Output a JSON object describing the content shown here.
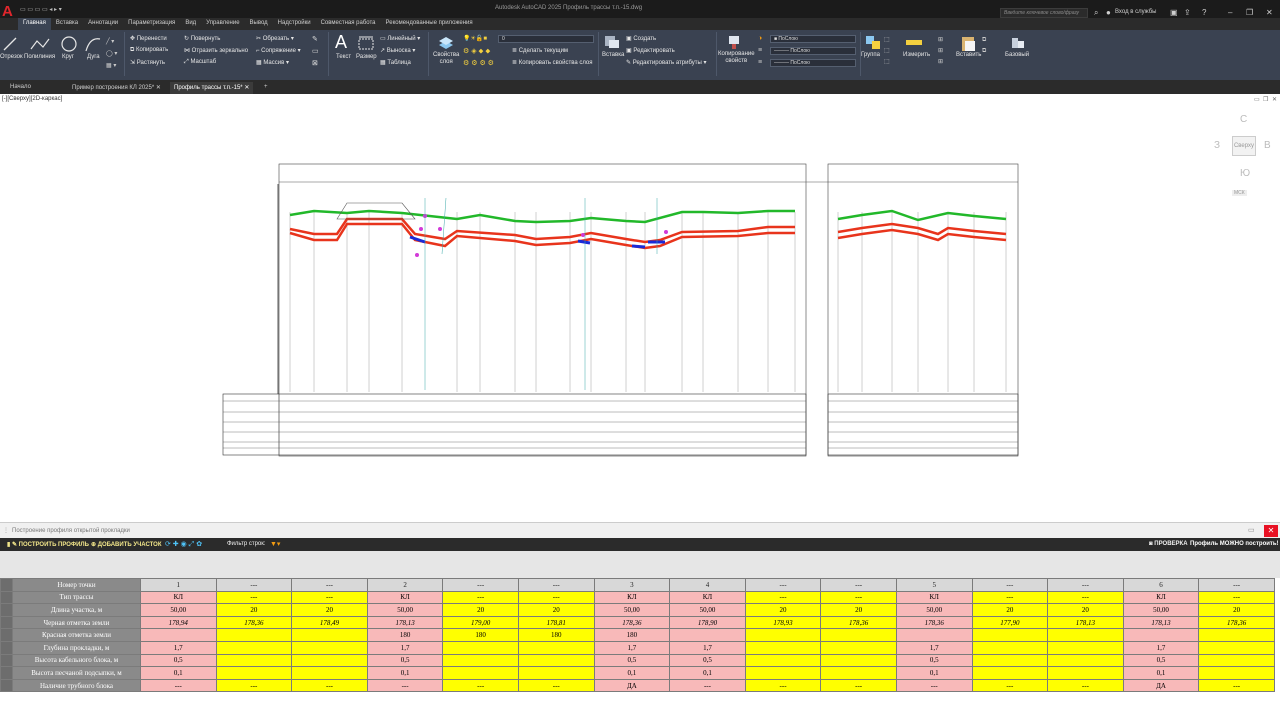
{
  "titlebar": {
    "logo": "A",
    "app_title": "Autodesk AutoCAD 2025   Профиль трассы т.п.-15.dwg",
    "search_placeholder": "Введите ключевое слово/фразу",
    "signin": "Вход в службы"
  },
  "ribbon_tabs": [
    "Главная",
    "Вставка",
    "Аннотации",
    "Параметризация",
    "Вид",
    "Управление",
    "Вывод",
    "Надстройки",
    "Совместная работа",
    "Рекомендованные приложения"
  ],
  "ribbon": {
    "draw": [
      "Отрезок",
      "Полилиния",
      "Круг",
      "Дуга"
    ],
    "modify": [
      "Перенести",
      "Повернуть",
      "Обрезать",
      "Копировать",
      "Отразить зеркально",
      "Сопряжение",
      "Растянуть",
      "Масштаб",
      "Массив"
    ],
    "annotation": [
      "Текст",
      "Размер",
      "Линейный",
      "Выноска",
      "Таблица"
    ],
    "layers": {
      "props": "Свойства слоя",
      "current_layer": "0",
      "make_current": "Сделать текущим",
      "copy_props": "Копировать свойства слоя"
    },
    "block": {
      "insert": "Вставка",
      "create": "Создать",
      "edit": "Редактировать",
      "edit_attr": "Редактировать атрибуты"
    },
    "properties": {
      "copy": "Копирование свойств",
      "bylayer1": "ПоСлою",
      "bylayer2": "ПоСлою",
      "bylayer3": "ПоСлою"
    },
    "group": "Группа",
    "utilities": "Измерить",
    "clipboard": "Вставить",
    "view": "Базовый"
  },
  "doc_tabs": [
    {
      "label": "Начало"
    },
    {
      "label": "Пример построения КЛ 2025*"
    },
    {
      "label": "Профиль трассы т.п.-15*"
    }
  ],
  "viewport": {
    "label": "[-][Сверху][2D-каркас]",
    "viewcube": {
      "n": "С",
      "s": "Ю",
      "w": "З",
      "e": "В",
      "top": "Сверху",
      "ucs": "МСК"
    }
  },
  "panel": {
    "title": "Построение профиля открытой прокладки",
    "build_btn": "ПОСТРОИТЬ ПРОФИЛЬ",
    "add_btn": "ДОБАВИТЬ УЧАСТОК",
    "filter_label": "Фильтр строк:",
    "check_btn": "ПРОВЕРКА",
    "status": "Профиль МОЖНО построить!"
  },
  "table": {
    "columns": [
      "1",
      "---",
      "---",
      "2",
      "---",
      "---",
      "3",
      "4",
      "---",
      "---",
      "5",
      "---",
      "---",
      "6",
      "---"
    ],
    "col_kinds": [
      "p",
      "y",
      "y",
      "p",
      "y",
      "y",
      "p",
      "p",
      "y",
      "y",
      "p",
      "y",
      "y",
      "p",
      "y"
    ],
    "row_labels": [
      "Номер точки",
      "Тип трассы",
      "Длина участка, м",
      "Черная отметка земли",
      "Красная отметка земли",
      "Глубина прокладки, м",
      "Высота кабельного блока, м",
      "Высота песчаной подсыпки, м",
      "Наличие трубного блока"
    ],
    "rows": [
      [
        "КЛ",
        "---",
        "---",
        "КЛ",
        "---",
        "---",
        "КЛ",
        "КЛ",
        "---",
        "---",
        "КЛ",
        "---",
        "---",
        "КЛ",
        "---"
      ],
      [
        "50,00",
        "20",
        "20",
        "50,00",
        "20",
        "20",
        "50,00",
        "50,00",
        "20",
        "20",
        "50,00",
        "20",
        "20",
        "50,00",
        "20"
      ],
      [
        "178,94",
        "178,36",
        "178,49",
        "178,13",
        "179,00",
        "178,81",
        "178,36",
        "178,90",
        "178,93",
        "178,36",
        "178,36",
        "177,90",
        "178,13",
        "178,13",
        "178,36"
      ],
      [
        "",
        "",
        "",
        "180",
        "180",
        "180",
        "180",
        "",
        "",
        "",
        "",
        "",
        "",
        "",
        ""
      ],
      [
        "1,7",
        "",
        "",
        "1,7",
        "",
        "",
        "1,7",
        "1,7",
        "",
        "",
        "1,7",
        "",
        "",
        "1,7",
        ""
      ],
      [
        "0,5",
        "",
        "",
        "0,5",
        "",
        "",
        "0,5",
        "0,5",
        "",
        "",
        "0,5",
        "",
        "",
        "0,5",
        ""
      ],
      [
        "0,1",
        "",
        "",
        "0,1",
        "",
        "",
        "0,1",
        "0,1",
        "",
        "",
        "0,1",
        "",
        "",
        "0,1",
        ""
      ],
      [
        "---",
        "---",
        "---",
        "---",
        "---",
        "---",
        "ДА",
        "---",
        "---",
        "---",
        "---",
        "---",
        "---",
        "ДА",
        "---"
      ]
    ]
  },
  "colors": {
    "ground": "#22b82a",
    "design": "#e8341c",
    "pink": "#f8b9b9",
    "yellow": "#ffff00",
    "ribbon": "#3a4251"
  }
}
